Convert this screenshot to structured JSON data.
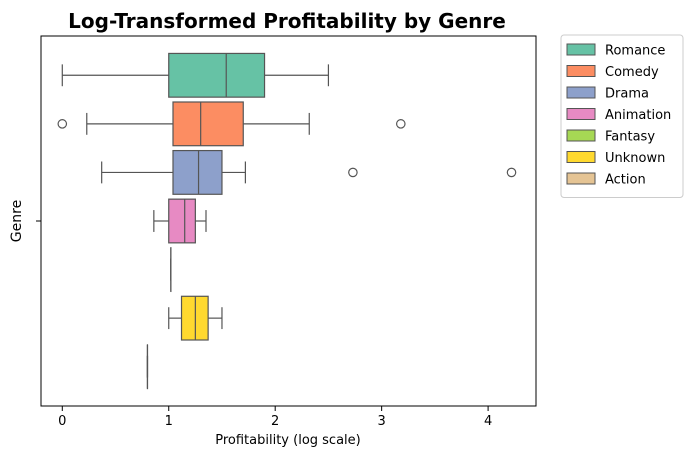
{
  "chart_data": {
    "type": "boxplot",
    "title": "Log-Transformed Profitability by Genre",
    "xlabel": "Profitability (log scale)",
    "ylabel": "Genre",
    "xlim": [
      -0.2,
      4.45
    ],
    "xticks": [
      0,
      1,
      2,
      3,
      4
    ],
    "yticks": [
      ""
    ],
    "grid": false,
    "legend_position": "outside-right",
    "orientation": "horizontal",
    "series": [
      {
        "name": "Romance",
        "color": "#66c2a5",
        "whisker_low": 0.0,
        "q1": 1.0,
        "median": 1.54,
        "q3": 1.9,
        "whisker_high": 2.5,
        "outliers": []
      },
      {
        "name": "Comedy",
        "color": "#fc8d62",
        "whisker_low": 0.23,
        "q1": 1.04,
        "median": 1.3,
        "q3": 1.7,
        "whisker_high": 2.32,
        "outliers": [
          0.0,
          3.18
        ]
      },
      {
        "name": "Drama",
        "color": "#8da0cb",
        "whisker_low": 0.37,
        "q1": 1.04,
        "median": 1.28,
        "q3": 1.5,
        "whisker_high": 1.72,
        "outliers": [
          2.73,
          4.22
        ]
      },
      {
        "name": "Animation",
        "color": "#e78ac3",
        "whisker_low": 0.86,
        "q1": 1.0,
        "median": 1.15,
        "q3": 1.25,
        "whisker_high": 1.35,
        "outliers": []
      },
      {
        "name": "Fantasy",
        "color": "#a6d854",
        "whisker_low": 1.02,
        "q1": 1.02,
        "median": 1.02,
        "q3": 1.02,
        "whisker_high": 1.02,
        "outliers": []
      },
      {
        "name": "Unknown",
        "color": "#ffd92f",
        "whisker_low": 1.0,
        "q1": 1.12,
        "median": 1.25,
        "q3": 1.37,
        "whisker_high": 1.5,
        "outliers": []
      },
      {
        "name": "Action",
        "color": "#e5c494",
        "whisker_low": 0.8,
        "q1": 0.8,
        "median": 0.8,
        "q3": 0.8,
        "whisker_high": 0.8,
        "outliers": []
      }
    ]
  }
}
